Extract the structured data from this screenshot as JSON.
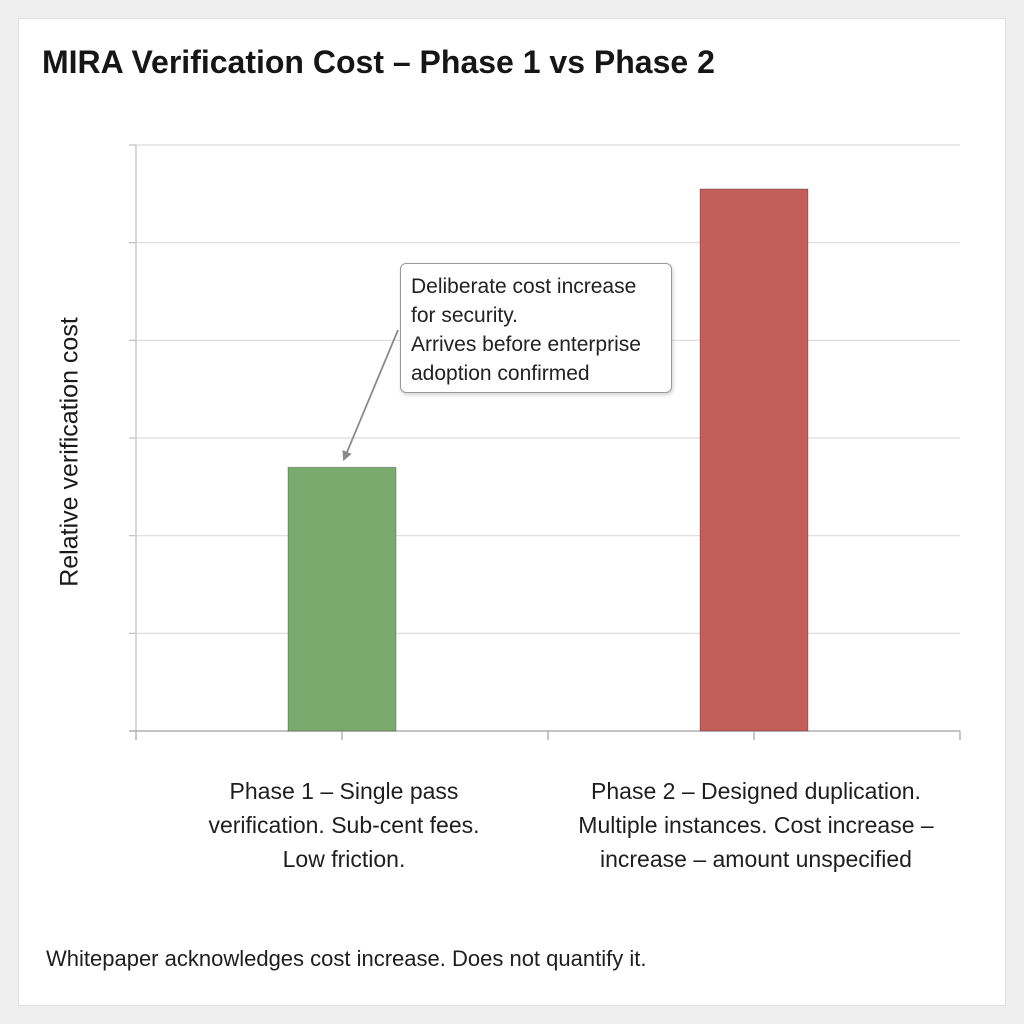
{
  "chart_data": {
    "type": "bar",
    "title": "MIRA Verification Cost – Phase 1 vs Phase 2",
    "ylabel": "Relative verification cost",
    "xlabel": "",
    "ylim": [
      0,
      6
    ],
    "grid": true,
    "categories": [
      "Phase 1 – Single pass verification. Sub-cent fees. Low friction.",
      "Phase 2 – Designed duplication. Multiple instances. Cost increase – increase – amount unspecified"
    ],
    "category_lines": [
      [
        "Phase 1 – Single pass",
        "verification. Sub-cent fees.",
        "Low friction."
      ],
      [
        "Phase 2 – Designed duplication.",
        "Multiple instances. Cost increase –",
        "increase – amount unspecified"
      ]
    ],
    "values": [
      2.7,
      5.55
    ],
    "colors": [
      "#7aab6e",
      "#c45e5b"
    ],
    "annotation": {
      "lines": [
        "Deliberate cost increase",
        "for security.",
        "Arrives before enterprise",
        "adoption confirmed"
      ],
      "points_to": "Phase 1 – Single pass verification. Sub-cent fees. Low friction."
    },
    "footnote": "Whitepaper acknowledges cost increase. Does not quantify it."
  }
}
